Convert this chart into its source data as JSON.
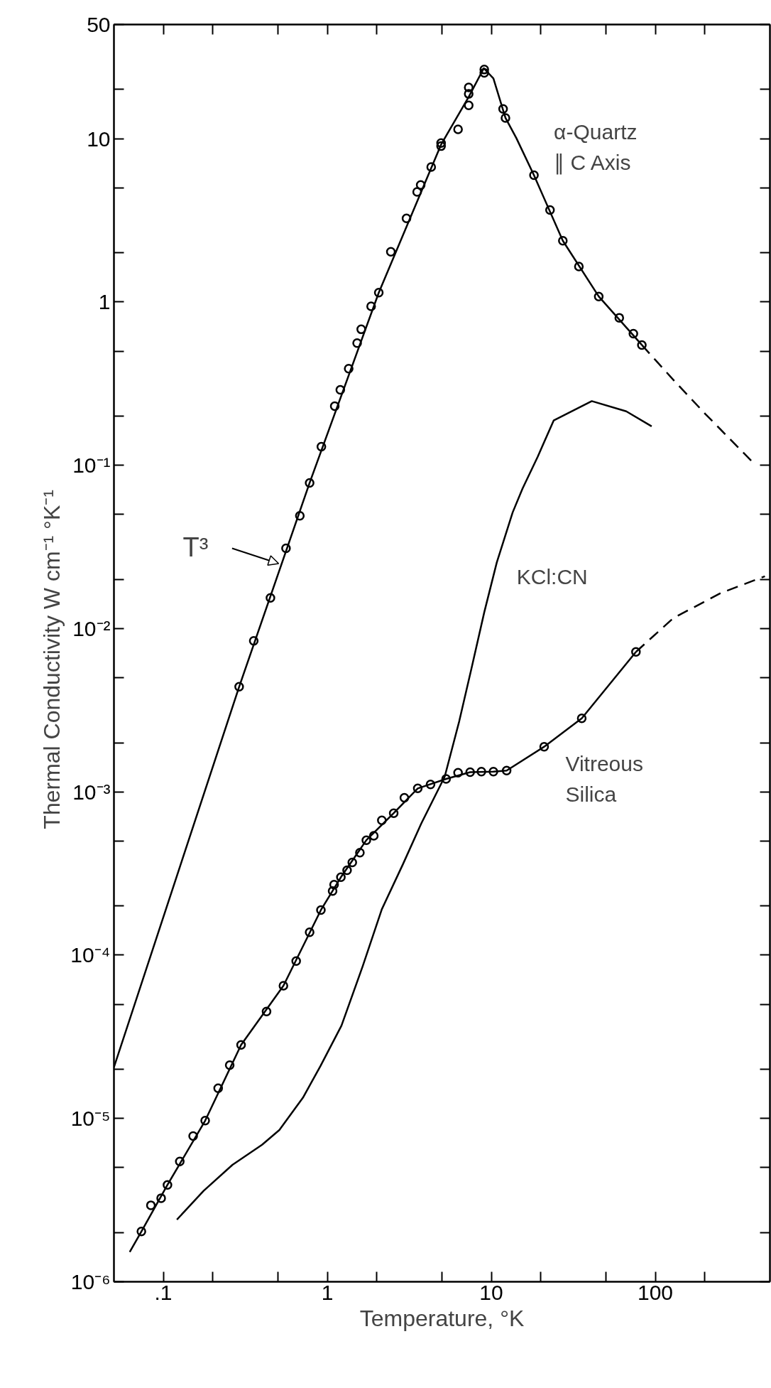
{
  "chart_data": {
    "type": "line",
    "xlabel": "Temperature, °K",
    "ylabel": "Thermal Conductivity   W cm⁻¹ °K⁻¹",
    "log": "xy",
    "xlim": [
      0.05,
      500
    ],
    "ylim": [
      1e-06,
      50
    ],
    "xticks": [
      {
        "value": 0.1,
        "label": ".1"
      },
      {
        "value": 0.2,
        "label": null
      },
      {
        "value": 0.5,
        "label": null
      },
      1,
      {
        "value": 2,
        "label": null
      },
      {
        "value": 5,
        "label": null
      },
      10,
      {
        "value": 20,
        "label": null
      },
      {
        "value": 50,
        "label": null
      },
      100,
      {
        "value": 200,
        "label": null
      }
    ],
    "yticks": [
      {
        "value": 1e-06,
        "label": "10⁻⁶"
      },
      {
        "value": 2e-06,
        "label": null
      },
      {
        "value": 5e-06,
        "label": null
      },
      {
        "value": 1e-05,
        "label": "10⁻⁵"
      },
      {
        "value": 2e-05,
        "label": null
      },
      {
        "value": 5e-05,
        "label": null
      },
      {
        "value": 0.0001,
        "label": "10⁻⁴"
      },
      {
        "value": 0.0002,
        "label": null
      },
      {
        "value": 0.0005,
        "label": null
      },
      {
        "value": 0.001,
        "label": "10⁻³"
      },
      {
        "value": 0.002,
        "label": null
      },
      {
        "value": 0.005,
        "label": null
      },
      {
        "value": 0.01,
        "label": "10⁻²"
      },
      {
        "value": 0.02,
        "label": null
      },
      {
        "value": 0.05,
        "label": null
      },
      {
        "value": 0.1,
        "label": "10⁻¹"
      },
      {
        "value": 0.2,
        "label": null
      },
      {
        "value": 0.5,
        "label": null
      },
      1,
      {
        "value": 2,
        "label": null
      },
      {
        "value": 5,
        "label": null
      },
      10,
      {
        "value": 20,
        "label": null
      },
      50
    ],
    "series": [
      {
        "name": "α-Quartz ∥ C Axis",
        "line_style": "solid",
        "color": "#000000",
        "x": [
          0.05,
          0.29,
          0.78,
          2.06,
          4.94,
          7.28,
          9.0,
          10.3,
          12.2,
          14.2,
          18.2,
          27.3,
          45.2,
          82.8
        ],
        "values": [
          2.06e-05,
          0.0044,
          0.078,
          1.14,
          9.2,
          18,
          27,
          23.4,
          13.4,
          10.1,
          5.97,
          2.37,
          1.08,
          0.545
        ]
      },
      {
        "line_style": "dashed",
        "color": "#000000",
        "x": [
          82.8,
          129,
          202,
          394
        ],
        "values": [
          0.545,
          0.333,
          0.206,
          0.104
        ]
      },
      {
        "name": "Vitreous Silica",
        "line_style": "solid",
        "color": "#000000",
        "x": [
          0.0624,
          0.0735,
          0.106,
          0.18,
          0.298,
          0.54,
          0.914,
          1.21,
          1.73,
          2.54,
          3.56,
          5.3,
          7.43,
          10.3,
          12.4,
          21.0,
          35.6,
          76.2
        ],
        "values": [
          1.52e-06,
          2.03e-06,
          3.92e-06,
          9.7e-06,
          2.82e-05,
          6.5e-05,
          0.000189,
          0.0003,
          0.000506,
          0.00074,
          0.00105,
          0.0012,
          0.00132,
          0.00133,
          0.00135,
          0.00189,
          0.00282,
          0.0072
        ]
      },
      {
        "line_style": "dashed",
        "color": "#000000",
        "x": [
          76.2,
          129,
          251,
          466
        ],
        "values": [
          0.0072,
          0.0116,
          0.0165,
          0.0209
        ]
      },
      {
        "name": "KCl:CN",
        "line_style": "solid",
        "color": "#000000",
        "x": [
          0.121,
          0.176,
          0.264,
          0.4,
          0.51,
          0.71,
          0.91,
          1.22,
          1.64,
          2.15,
          2.89,
          3.74,
          5.2,
          6.37,
          7.57,
          9.06,
          10.8,
          13.5,
          15.5,
          19.2,
          24.0,
          41,
          66.5,
          95
        ],
        "values": [
          2.4e-06,
          3.6e-06,
          5.2e-06,
          6.9e-06,
          8.5e-06,
          1.34e-05,
          2.1e-05,
          3.7e-05,
          8.5e-05,
          0.000191,
          0.00036,
          0.00064,
          0.00124,
          0.0027,
          0.0057,
          0.0126,
          0.0254,
          0.0515,
          0.072,
          0.113,
          0.188,
          0.247,
          0.214,
          0.173
        ]
      },
      {
        "type": "scatter",
        "marker": "circle",
        "color": "#000000",
        "x": [
          0.29,
          0.356,
          0.45,
          0.56,
          0.68,
          0.78,
          0.92,
          1.11,
          1.2,
          1.35,
          1.52,
          1.61,
          1.85,
          2.06,
          2.44,
          3.04,
          3.53,
          3.71,
          4.3,
          4.94,
          4.94,
          6.27,
          7.28,
          7.28,
          7.28,
          9.06,
          9.06,
          11.8,
          12.2,
          18.2,
          22.8,
          27.3,
          34.2,
          45.2,
          60.3,
          73.5,
          82.8
        ],
        "values": [
          0.0044,
          0.0084,
          0.0154,
          0.031,
          0.049,
          0.078,
          0.13,
          0.23,
          0.29,
          0.39,
          0.56,
          0.68,
          0.94,
          1.14,
          2.03,
          3.25,
          4.72,
          5.2,
          6.7,
          9.0,
          9.4,
          11.4,
          16,
          18.8,
          20.6,
          25.3,
          26.5,
          15.2,
          13.4,
          5.97,
          3.66,
          2.37,
          1.65,
          1.08,
          0.8,
          0.64,
          0.545
        ]
      },
      {
        "type": "scatter",
        "marker": "circle",
        "color": "#000000",
        "x": [
          0.0735,
          0.084,
          0.097,
          0.106,
          0.126,
          0.152,
          0.18,
          0.216,
          0.254,
          0.298,
          0.426,
          0.54,
          0.646,
          0.78,
          0.914,
          1.077,
          1.1,
          1.21,
          1.32,
          1.42,
          1.58,
          1.73,
          1.92,
          2.15,
          2.54,
          2.95,
          3.56,
          4.26,
          5.3,
          6.27,
          7.43,
          8.7,
          10.3,
          12.4,
          21.0,
          35.6,
          76.2
        ],
        "values": [
          2.03e-06,
          2.94e-06,
          3.25e-06,
          3.92e-06,
          5.45e-06,
          7.8e-06,
          9.7e-06,
          1.53e-05,
          2.12e-05,
          2.82e-05,
          4.52e-05,
          6.5e-05,
          9.2e-05,
          0.000138,
          0.000189,
          0.000247,
          0.00027,
          0.0003,
          0.000331,
          0.00037,
          0.000424,
          0.000506,
          0.000538,
          0.00067,
          0.00074,
          0.00092,
          0.00105,
          0.00111,
          0.0012,
          0.00131,
          0.00132,
          0.00133,
          0.00133,
          0.00135,
          0.00189,
          0.00282,
          0.0072
        ]
      }
    ],
    "annotations": [
      {
        "text": "T³",
        "x": 0.505,
        "y": 0.025
      }
    ]
  }
}
